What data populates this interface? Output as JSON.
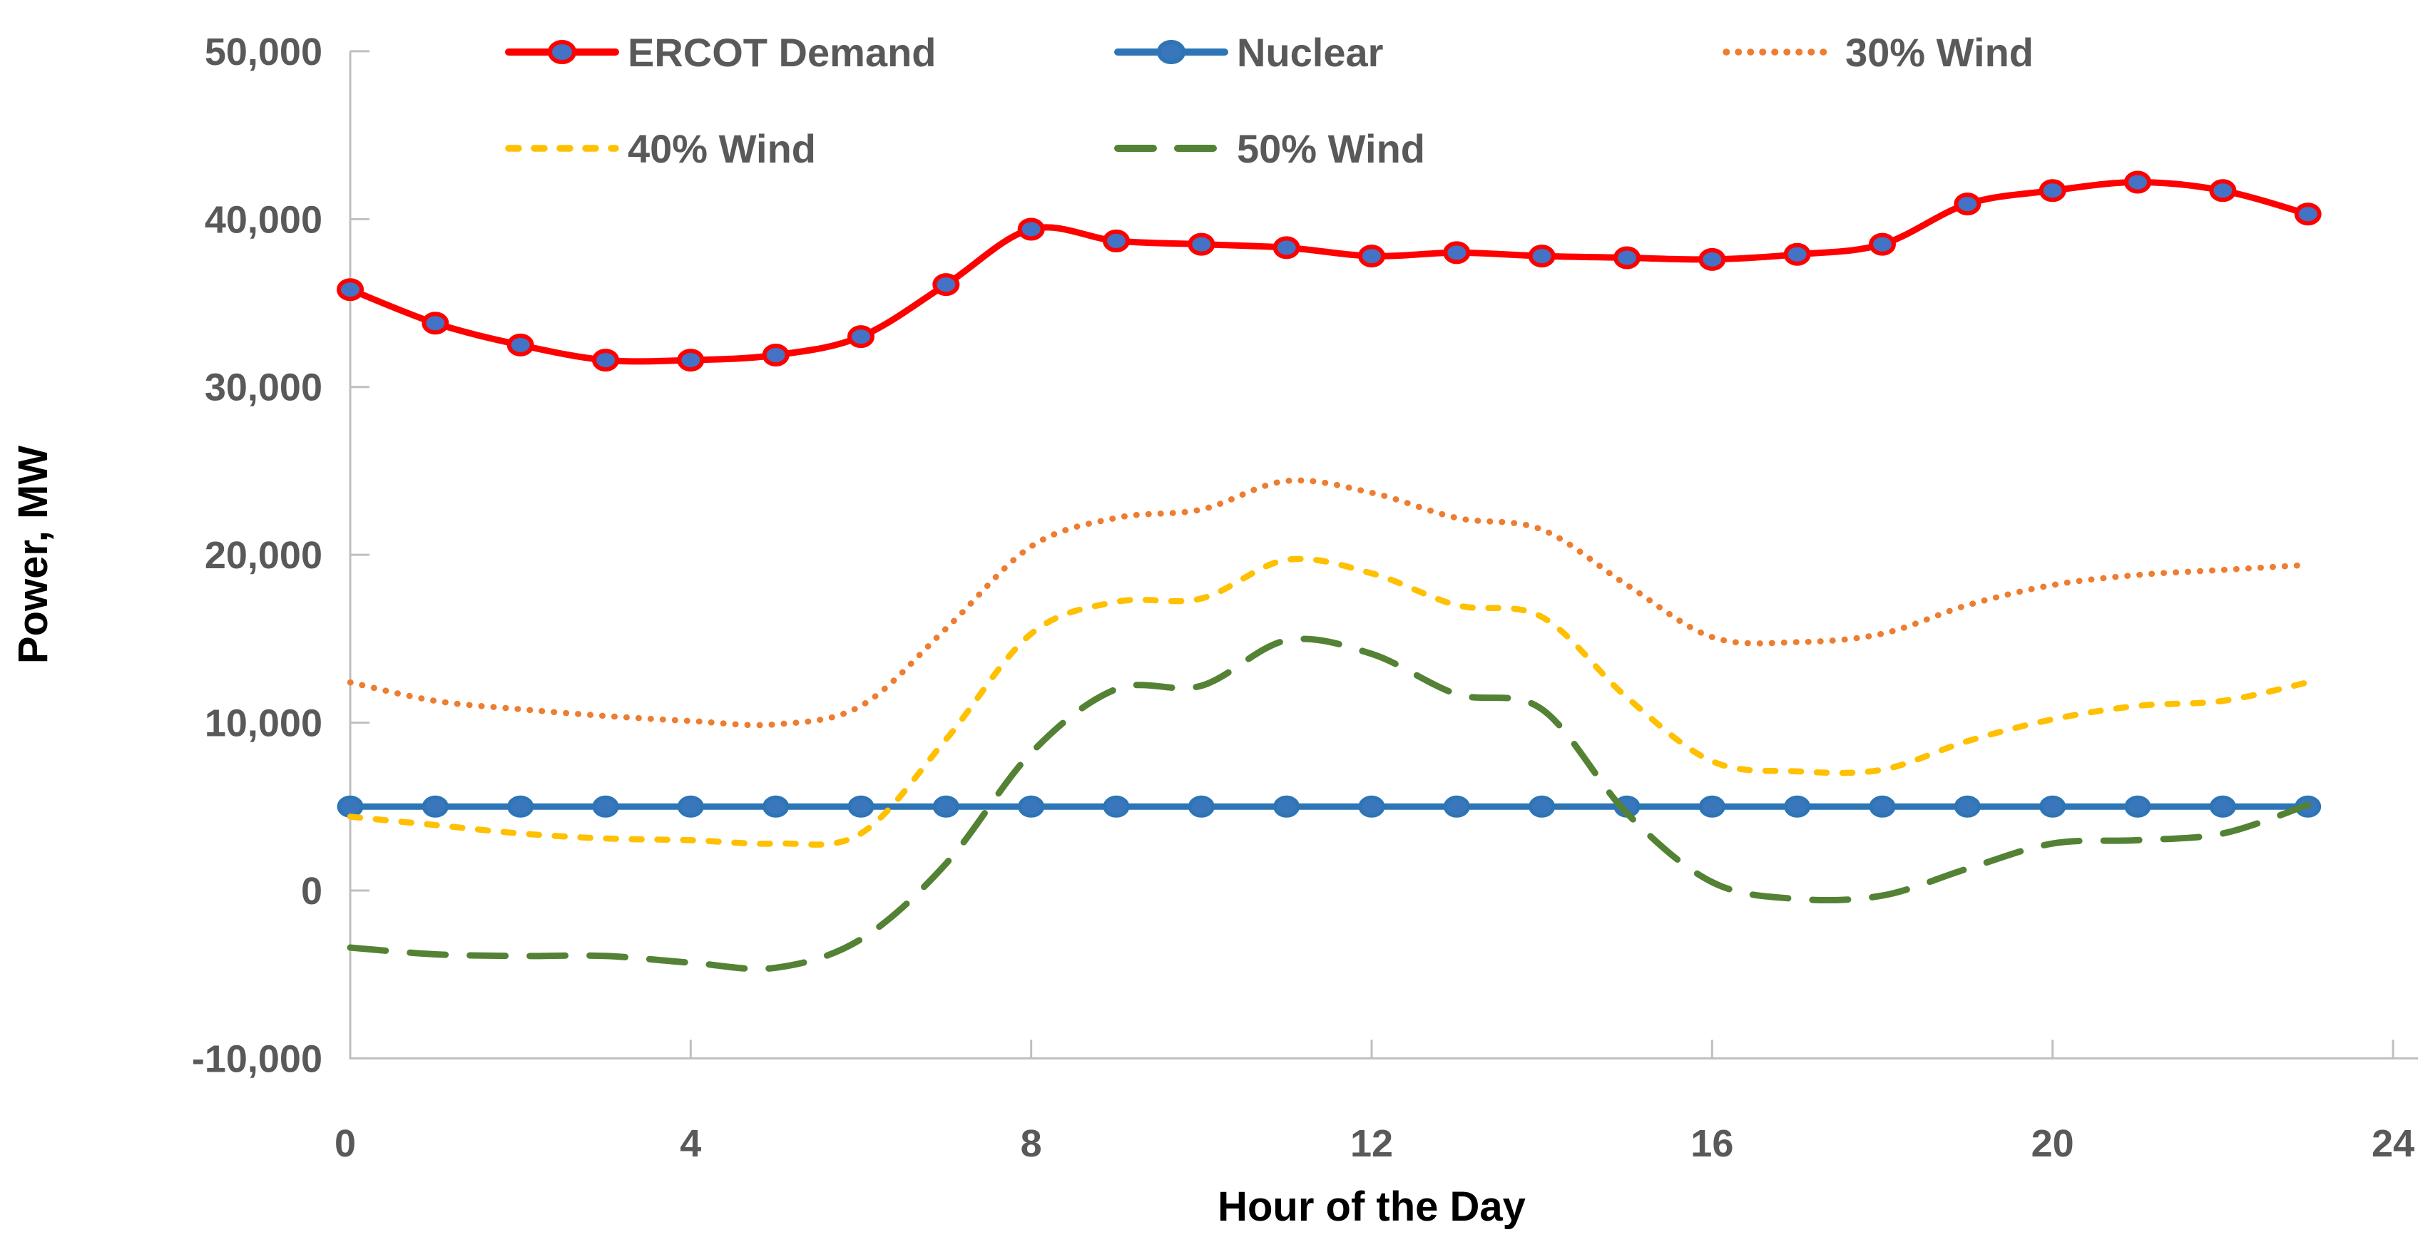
{
  "chart_data": {
    "type": "line",
    "title": "",
    "xlabel": "Hour of the Day",
    "ylabel": "Power, MW",
    "xlim": [
      0,
      24
    ],
    "ylim": [
      -10000,
      50000
    ],
    "grid": "off",
    "legend_position": "top",
    "x_ticks": [
      0,
      4,
      8,
      12,
      16,
      20,
      24
    ],
    "x_tick_labels": [
      "0",
      "4",
      "8",
      "12",
      "16",
      "20",
      "24"
    ],
    "y_ticks": [
      50000,
      40000,
      30000,
      20000,
      10000,
      0,
      -10000
    ],
    "y_tick_labels": [
      "50,000",
      "40,000",
      "30,000",
      "20,000",
      "10,000",
      "0",
      "-10,000"
    ],
    "hours": [
      0,
      1,
      2,
      3,
      4,
      5,
      6,
      7,
      8,
      9,
      10,
      11,
      12,
      13,
      14,
      15,
      16,
      17,
      18,
      19,
      20,
      21,
      22,
      23
    ],
    "series": [
      {
        "name": "ERCOT Demand",
        "color": "#FF0000",
        "style": "solid",
        "marker": true,
        "marker_fill": "#4472C4",
        "values": [
          35800,
          33800,
          32500,
          31600,
          31600,
          31900,
          33000,
          36100,
          39400,
          38700,
          38500,
          38300,
          37800,
          38000,
          37800,
          37700,
          37600,
          37900,
          38500,
          40900,
          41700,
          42200,
          41700,
          40300
        ]
      },
      {
        "name": "Nuclear",
        "color": "#2E75B6",
        "style": "solid",
        "marker": true,
        "marker_fill": "#3A76BB",
        "values": [
          5000,
          5000,
          5000,
          5000,
          5000,
          5000,
          5000,
          5000,
          5000,
          5000,
          5000,
          5000,
          5000,
          5000,
          5000,
          5000,
          5000,
          5000,
          5000,
          5000,
          5000,
          5000,
          5000,
          5000
        ]
      },
      {
        "name": "30% Wind",
        "color": "#ED7D31",
        "style": "dotted",
        "marker": false,
        "marker_fill": "",
        "values": [
          12400,
          11300,
          10800,
          10400,
          10100,
          9900,
          11000,
          15600,
          20500,
          22200,
          22700,
          24400,
          23700,
          22200,
          21500,
          18200,
          15100,
          14800,
          15300,
          17000,
          18200,
          18800,
          19100,
          19400
        ]
      },
      {
        "name": "40% Wind",
        "color": "#FFC000",
        "style": "dashed",
        "marker": false,
        "marker_fill": "",
        "values": [
          4400,
          3900,
          3400,
          3100,
          3000,
          2800,
          3400,
          9000,
          15300,
          17200,
          17400,
          19700,
          18900,
          17000,
          16300,
          11500,
          7700,
          7100,
          7200,
          8900,
          10200,
          11000,
          11300,
          12400
        ]
      },
      {
        "name": "50% Wind",
        "color": "#548235",
        "style": "long-dash",
        "marker": false,
        "marker_fill": "",
        "values": [
          -3400,
          -3800,
          -3900,
          -3900,
          -4300,
          -4600,
          -2900,
          1600,
          8200,
          12000,
          12200,
          14900,
          14100,
          11700,
          10800,
          4600,
          500,
          -500,
          -300,
          1300,
          2800,
          3000,
          3400,
          5100
        ]
      }
    ]
  },
  "colors": {
    "axis_line": "#BFBFBF",
    "tick_text": "#595959",
    "title_text": "#000000",
    "background": "#FFFFFF"
  }
}
